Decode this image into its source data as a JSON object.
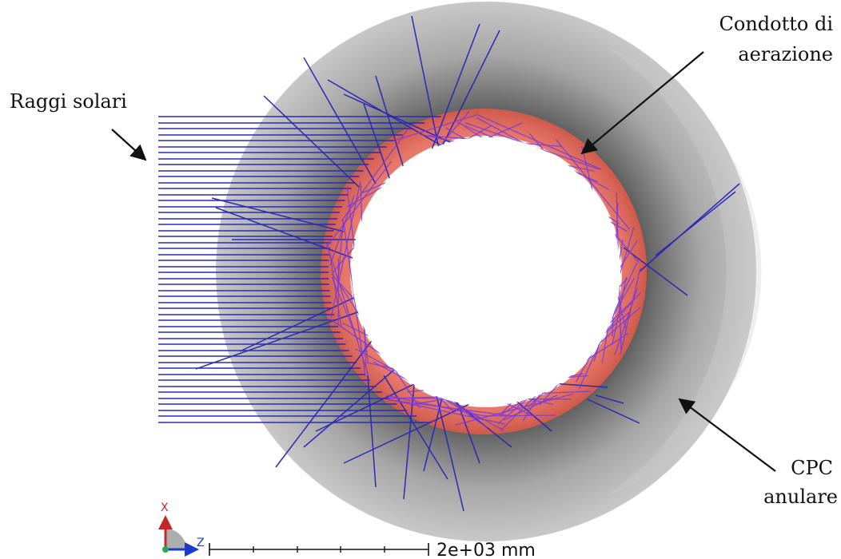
{
  "labels": {
    "rays": "Raggi solari",
    "duct_line1": "Condotto di",
    "duct_line2": "aerazione",
    "cpc_line1": "CPC",
    "cpc_line2": "anulare"
  },
  "triad": {
    "x_axis": "X",
    "z_axis": "Z"
  },
  "scale_bar": {
    "label": "2e+03 mm"
  },
  "colors": {
    "ray": "#2a2ab4",
    "ray_inside": "#7a3ad8",
    "duct": "#e06a5c",
    "cpc_outer": "#c4c4c4",
    "cpc_inner_shadow": "#555555"
  }
}
